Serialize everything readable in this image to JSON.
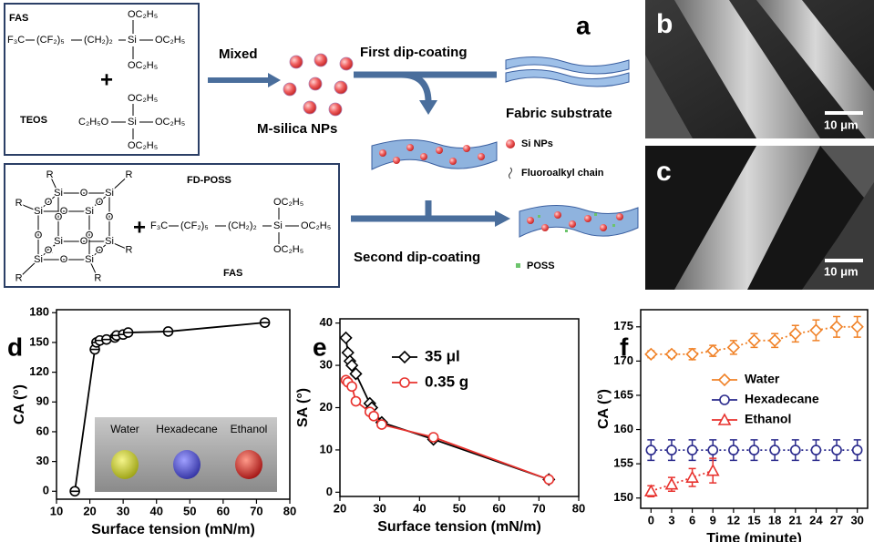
{
  "panel_a": {
    "label": "a",
    "fas": {
      "title": "FAS",
      "parts": [
        "F₃C",
        "(CF₂)₅",
        "(CH₂)₂",
        "Si",
        "OC₂H₅",
        "OC₂H₅",
        "OC₂H₅"
      ]
    },
    "plus_1": "+",
    "teos": {
      "title": "TEOS",
      "parts": [
        "OC₂H₅",
        "C₂H₅O",
        "Si",
        "OC₂H₅",
        "OC₂H₅"
      ]
    },
    "fd_poss": {
      "title": "FD-POSS",
      "si": [
        "Si",
        "Si",
        "Si",
        "Si",
        "Si",
        "Si",
        "Si",
        "Si"
      ],
      "o": [
        "O",
        "O",
        "O",
        "O",
        "O",
        "O",
        "O",
        "O",
        "O",
        "O",
        "O",
        "O"
      ],
      "r": [
        "R",
        "R",
        "R",
        "R",
        "R",
        "R",
        "R",
        "R"
      ]
    },
    "plus_2": "+",
    "fas_2": {
      "title": "FAS",
      "parts": [
        "F₃C",
        "(CF₂)₅",
        "(CH₂)₂",
        "Si",
        "OC₂H₅",
        "OC₂H₅",
        "OC₂H₅"
      ]
    },
    "mixed": "Mixed",
    "m_silica": "M-silica NPs",
    "first_dip": "First dip-coating",
    "fabric": "Fabric substrate",
    "si_nps": "Si NPs",
    "fluoroalkyl": "Fluoroalkyl chain",
    "second_dip": "Second dip-coating",
    "poss": "POSS"
  },
  "panel_b": {
    "label": "b",
    "scale": "10 μm"
  },
  "panel_c": {
    "label": "c",
    "scale": "10 μm"
  },
  "chart_data": [
    {
      "type": "line",
      "label": "d",
      "xlabel": "Surface tension (mN/m)",
      "ylabel": "CA (°)",
      "xlim": [
        10,
        80
      ],
      "ylim": [
        -8,
        183
      ],
      "xticks": [
        10,
        20,
        30,
        40,
        50,
        60,
        70,
        80
      ],
      "yticks": [
        0,
        30,
        60,
        90,
        120,
        150,
        180
      ],
      "series": [
        {
          "color": "#000000",
          "marker": "circle-bar",
          "x": [
            15.5,
            21.5,
            22,
            23,
            25,
            27.5,
            28,
            30,
            31.5,
            43.5,
            72.5
          ],
          "values": [
            0,
            143,
            150,
            152,
            153,
            155,
            157,
            158,
            160,
            161,
            170
          ]
        }
      ],
      "inset": [
        "Water",
        "Hexadecane",
        "Ethanol"
      ]
    },
    {
      "type": "line",
      "label": "e",
      "xlabel": "Surface tension (mN/m)",
      "ylabel": "SA (°)",
      "xlim": [
        20,
        80
      ],
      "ylim": [
        -1,
        41
      ],
      "xticks": [
        20,
        30,
        40,
        50,
        60,
        70,
        80
      ],
      "yticks": [
        0,
        10,
        20,
        30,
        40
      ],
      "legend": "upper right",
      "series": [
        {
          "name": "35 μl",
          "color": "#000000",
          "marker": "diamond",
          "x": [
            21.5,
            22,
            22.5,
            23,
            24,
            27.5,
            28,
            30.5,
            43.5,
            72.5
          ],
          "values": [
            36.5,
            33,
            31,
            30,
            28,
            21,
            20,
            16.5,
            12.5,
            3
          ]
        },
        {
          "name": "0.35 g",
          "color": "#e8322e",
          "marker": "circle",
          "x": [
            21.5,
            22,
            23,
            24,
            27.5,
            28.5,
            30.5,
            43.5,
            72.5
          ],
          "values": [
            26.5,
            26,
            25,
            21.5,
            19,
            18,
            16,
            13,
            3
          ]
        }
      ]
    },
    {
      "type": "line",
      "label": "f",
      "xlabel": "Time (minute)",
      "ylabel": "CA (°)",
      "xlim": [
        -1.5,
        31.5
      ],
      "ylim": [
        148.5,
        177.5
      ],
      "xticks": [
        0,
        3,
        6,
        9,
        12,
        15,
        18,
        21,
        24,
        27,
        30
      ],
      "yticks": [
        150,
        155,
        160,
        165,
        170,
        175
      ],
      "legend": "center",
      "dotted": true,
      "series": [
        {
          "name": "Water",
          "color": "#f08228",
          "marker": "diamond",
          "x": [
            0,
            3,
            6,
            9,
            12,
            15,
            18,
            21,
            24,
            27,
            30
          ],
          "values": [
            171,
            171,
            171,
            171.5,
            172,
            173,
            173,
            174,
            174.5,
            175,
            175
          ],
          "errors": [
            0.5,
            0.5,
            0.8,
            0.8,
            1,
            1,
            1,
            1.2,
            1.5,
            1.5,
            1.5
          ]
        },
        {
          "name": "Hexadecane",
          "color": "#2a2a8c",
          "marker": "circle",
          "x": [
            0,
            3,
            6,
            9,
            12,
            15,
            18,
            21,
            24,
            27,
            30
          ],
          "values": [
            157,
            157,
            157,
            157,
            157,
            157,
            157,
            157,
            157,
            157,
            157
          ],
          "errors": [
            1.5,
            1.5,
            1.5,
            1.5,
            1.5,
            1.5,
            1.5,
            1.5,
            1.5,
            1.5,
            1.5
          ]
        },
        {
          "name": "Ethanol",
          "color": "#e8322e",
          "marker": "triangle",
          "x": [
            0,
            3,
            6,
            9
          ],
          "values": [
            151,
            152,
            153,
            154
          ],
          "errors": [
            0.8,
            1,
            1.3,
            1.8
          ]
        }
      ]
    }
  ]
}
